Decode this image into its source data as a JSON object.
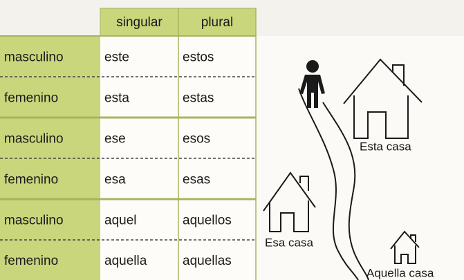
{
  "table": {
    "headers": [
      "singular",
      "plural"
    ],
    "rows": [
      [
        "masculino",
        "este",
        "estos"
      ],
      [
        "femenino",
        "esta",
        "estas"
      ],
      [
        "masculino",
        "ese",
        "esos"
      ],
      [
        "femenino",
        "esa",
        "esas"
      ],
      [
        "masculino",
        "aquel",
        "aquellos"
      ],
      [
        "femenino",
        "aquella",
        "aquellas"
      ]
    ]
  },
  "illustration": {
    "labels": [
      "Esta casa",
      "Esa casa",
      "Aquella casa"
    ]
  }
}
